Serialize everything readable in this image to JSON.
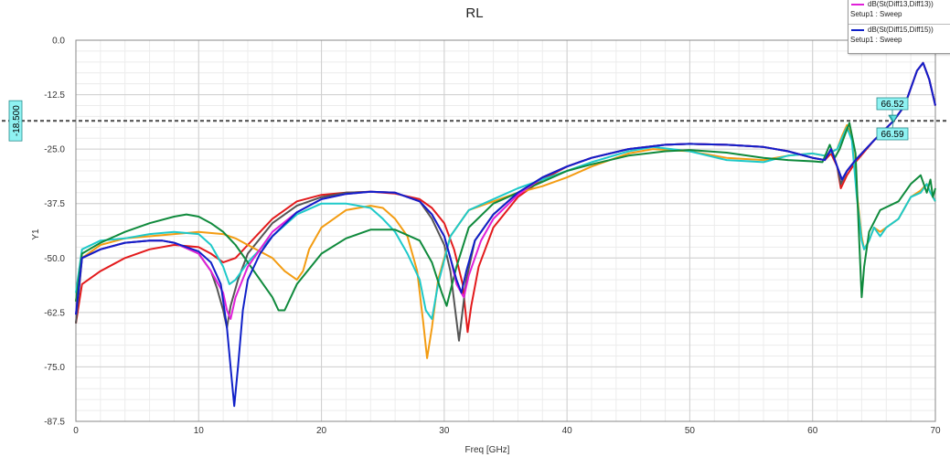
{
  "chart_data": {
    "type": "line",
    "title": "RL",
    "xlabel": "Freq [GHz]",
    "ylabel": "Y1",
    "xlim": [
      0,
      70
    ],
    "ylim": [
      -87.5,
      0
    ],
    "xticks": [
      0,
      10,
      20,
      30,
      40,
      50,
      60,
      70
    ],
    "yticks": [
      0.0,
      -12.5,
      -25.0,
      -37.5,
      -50.0,
      -62.5,
      -75.0,
      -87.5
    ],
    "ytick_labels": [
      "0.0",
      "-12.5",
      "-25.0",
      "-37.5",
      "-50.0",
      "-62.5",
      "-75.0",
      "-87.5"
    ],
    "grid": true,
    "legend_position": "top-right",
    "reference_line": {
      "y": -18.5,
      "label": "-18.500",
      "color": "#555555"
    },
    "markers": [
      {
        "x": 66.5,
        "y": -18.5,
        "label": "66.52"
      },
      {
        "x": 66.6,
        "y": -18.5,
        "label": "66.59"
      }
    ],
    "series": [
      {
        "color": "#e31a1c",
        "x": [
          0,
          0.5,
          2,
          4,
          6,
          8,
          10,
          11,
          12,
          13,
          14,
          16,
          18,
          20,
          22,
          24,
          26,
          28,
          29,
          30,
          30.8,
          31.5,
          31.9,
          32.2,
          32.8,
          34,
          36,
          38,
          40,
          42,
          45,
          48,
          50,
          53,
          56,
          58,
          60,
          61,
          61.5,
          62,
          62.3,
          62.8,
          63.5,
          65,
          66.6,
          67.5,
          68.5,
          69,
          69.5,
          70
        ],
        "y": [
          -65,
          -56,
          -53,
          -50,
          -48,
          -47,
          -47.5,
          -49,
          -51,
          -50,
          -47,
          -41,
          -37,
          -35.5,
          -35,
          -34.8,
          -35.2,
          -36.5,
          -38.5,
          -42,
          -48,
          -56,
          -67,
          -61,
          -52,
          -43,
          -36,
          -32,
          -29,
          -27,
          -25,
          -24,
          -23.8,
          -24,
          -24.5,
          -25.5,
          -27,
          -27.5,
          -26,
          -29,
          -34,
          -31,
          -28,
          -23,
          -18.5,
          -15,
          -7,
          -5.2,
          -9,
          -15
        ]
      },
      {
        "color": "#555555",
        "x": [
          0,
          0.5,
          2,
          4,
          6,
          7,
          8,
          10,
          11,
          11.5,
          12,
          12.3,
          12.6,
          13.2,
          14,
          16,
          18,
          20,
          22,
          24,
          26,
          28,
          29,
          30,
          30.5,
          31.2,
          31.8,
          32.5,
          34,
          36,
          38,
          40,
          42,
          45,
          48,
          50,
          53,
          56,
          58,
          60,
          61,
          61.5,
          62,
          62.3,
          62.8,
          63.5,
          65,
          66.6,
          67.5,
          68.5,
          69,
          69.5,
          70
        ],
        "y": [
          -65,
          -50,
          -48,
          -46.5,
          -46,
          -46,
          -46.5,
          -49,
          -53,
          -57,
          -62,
          -66,
          -61,
          -55,
          -49,
          -42,
          -38,
          -36,
          -35,
          -34.8,
          -35,
          -37,
          -41,
          -47,
          -53,
          -69,
          -55,
          -46,
          -40,
          -35,
          -31.5,
          -29,
          -27,
          -25,
          -24,
          -23.8,
          -24,
          -24.5,
          -25.5,
          -27,
          -27.5,
          -25,
          -29,
          -33,
          -30,
          -27.5,
          -23,
          -18.5,
          -15,
          -7,
          -5.2,
          -9,
          -15
        ]
      },
      {
        "color": "#f39c12",
        "x": [
          0,
          0.5,
          2,
          4,
          6,
          8,
          10,
          12,
          13,
          14,
          16,
          17,
          18,
          18.5,
          19,
          20,
          22,
          24,
          25,
          26,
          27,
          27.8,
          28.3,
          28.6,
          29,
          29.5,
          30.5,
          32,
          34,
          36,
          38,
          40,
          42,
          45,
          47,
          50,
          53,
          56,
          58,
          60,
          61,
          62,
          62.4,
          62.8,
          63.2,
          63.6,
          64,
          64.2,
          64.6,
          65,
          65.5,
          66,
          67,
          68,
          68.8,
          69.3,
          69.6,
          70
        ],
        "y": [
          -60,
          -50,
          -47,
          -45.5,
          -45,
          -44.5,
          -44,
          -44.5,
          -45.5,
          -47,
          -50,
          -53,
          -55,
          -53,
          -48,
          -43,
          -39,
          -38,
          -38.5,
          -41,
          -45,
          -53,
          -65,
          -73,
          -66,
          -55,
          -45,
          -39,
          -37,
          -35,
          -33.5,
          -31.5,
          -29,
          -26,
          -25,
          -25.5,
          -27,
          -27.5,
          -26.5,
          -26,
          -26.5,
          -25,
          -22,
          -19.5,
          -22,
          -35,
          -45,
          -48,
          -46,
          -43,
          -44,
          -43,
          -41,
          -36,
          -34.5,
          -33,
          -35,
          -37
        ]
      },
      {
        "color": "#1ec9c9",
        "x": [
          0,
          0.5,
          2,
          4,
          6,
          8,
          10,
          11,
          12,
          12.5,
          13,
          14,
          16,
          18,
          20,
          22,
          24,
          25,
          26,
          27,
          28,
          28.5,
          29,
          29.5,
          30.5,
          32,
          34,
          36,
          38,
          40,
          42,
          45,
          47,
          50,
          53,
          56,
          58,
          60,
          61,
          62,
          62.4,
          62.8,
          63.2,
          63.6,
          64,
          64.2,
          64.6,
          65,
          65.5,
          66,
          67,
          68,
          68.8,
          69.3,
          69.6,
          70
        ],
        "y": [
          -58,
          -48,
          -46,
          -45.5,
          -44.5,
          -44,
          -44.5,
          -47,
          -52,
          -56,
          -55,
          -51,
          -45,
          -40,
          -37.5,
          -37.5,
          -38.5,
          -41,
          -44,
          -49,
          -55,
          -62,
          -64,
          -56,
          -45,
          -39,
          -36.5,
          -34,
          -32,
          -30,
          -28,
          -25.5,
          -24.5,
          -25.5,
          -27.5,
          -28,
          -26.5,
          -26,
          -26.5,
          -25,
          -22.5,
          -20,
          -23,
          -36,
          -46,
          -48,
          -46,
          -43,
          -45,
          -43,
          -41,
          -36,
          -35,
          -33,
          -35,
          -37
        ]
      },
      {
        "color": "#0f8a3c",
        "x": [
          0,
          0.5,
          2,
          4,
          6,
          8,
          9,
          10,
          11,
          12,
          13,
          14,
          15,
          16,
          16.5,
          17,
          18,
          20,
          22,
          24,
          26,
          28,
          29,
          29.8,
          30.2,
          31,
          32,
          34,
          36,
          38,
          40,
          42,
          45,
          48,
          50,
          53,
          56,
          58,
          60,
          60.8,
          61.4,
          61.8,
          62.2,
          62.6,
          63,
          63.5,
          63.8,
          64,
          64.2,
          64.6,
          65.5,
          67,
          68,
          68.8,
          69.3,
          69.6,
          69.8,
          70
        ],
        "y": [
          -60,
          -49,
          -46.5,
          -44,
          -42,
          -40.5,
          -40,
          -40.5,
          -42,
          -44,
          -47,
          -51,
          -55,
          -59,
          -62,
          -62,
          -56,
          -49,
          -45.5,
          -43.5,
          -43.5,
          -46,
          -51,
          -58,
          -61,
          -52,
          -43,
          -37.5,
          -35,
          -32.5,
          -30,
          -28.5,
          -26.5,
          -25.5,
          -25.2,
          -25.8,
          -27,
          -27.5,
          -27.8,
          -28,
          -24,
          -27,
          -25,
          -22,
          -19,
          -26,
          -46,
          -59,
          -52,
          -44,
          -39,
          -37,
          -33,
          -31,
          -35,
          -32,
          -36,
          -34
        ]
      },
      {
        "color": "#e020d8",
        "x": [
          0,
          0.5,
          2,
          4,
          6,
          7,
          8,
          10,
          11,
          12,
          12.3,
          12.6,
          13,
          14,
          16,
          18,
          20,
          22,
          24,
          26,
          28,
          29,
          30,
          30.5,
          31,
          31.6,
          32,
          33,
          34,
          36,
          38,
          40,
          42,
          45,
          48,
          50,
          53,
          56,
          58,
          60,
          61,
          61.5,
          62,
          62.4,
          62.8,
          63.5,
          65,
          66.6,
          67.5,
          68.5,
          69,
          69.5,
          70
        ],
        "y": [
          -63,
          -50,
          -48,
          -46.5,
          -46,
          -46,
          -46.5,
          -49,
          -53,
          -58,
          -62,
          -64,
          -59,
          -52,
          -44,
          -39.5,
          -36.5,
          -35.3,
          -34.8,
          -35,
          -37,
          -40,
          -45,
          -50,
          -56,
          -59,
          -54,
          -46,
          -41,
          -35.5,
          -31.5,
          -29,
          -27,
          -25,
          -24,
          -23.8,
          -24,
          -24.5,
          -25.5,
          -27,
          -27.5,
          -25,
          -29,
          -32,
          -30,
          -27.5,
          -23,
          -18.5,
          -15,
          -7,
          -5.2,
          -9,
          -15
        ]
      },
      {
        "color": "#1020c8",
        "x": [
          0,
          0.5,
          2,
          4,
          6,
          7,
          8,
          10,
          11,
          11.8,
          12.3,
          12.7,
          12.9,
          13.2,
          13.6,
          14,
          15,
          16,
          18,
          20,
          22,
          24,
          26,
          28,
          29,
          30,
          30.5,
          31,
          31.4,
          31.8,
          32.5,
          34,
          36,
          38,
          40,
          42,
          45,
          48,
          50,
          53,
          56,
          58,
          60,
          61,
          61.5,
          62,
          62.4,
          62.8,
          63.5,
          65,
          66.6,
          67.5,
          68.5,
          69,
          69.5,
          70
        ],
        "y": [
          -63,
          -50,
          -48,
          -46.5,
          -46,
          -46,
          -46.5,
          -48.5,
          -51,
          -56,
          -66,
          -78,
          -84,
          -75,
          -62,
          -55,
          -49,
          -45,
          -39.5,
          -36.5,
          -35.3,
          -34.8,
          -35,
          -37,
          -40,
          -45,
          -50,
          -55,
          -58,
          -53,
          -46,
          -40,
          -35,
          -31.5,
          -29,
          -27,
          -25,
          -24,
          -23.8,
          -24,
          -24.5,
          -25.5,
          -27,
          -27.5,
          -25,
          -29,
          -32,
          -30,
          -27.5,
          -23,
          -18.5,
          -15,
          -7,
          -5.2,
          -9,
          -15
        ]
      }
    ]
  },
  "legend": {
    "entries": [
      {
        "name": "dB(St(Diff13,Diff13))",
        "sub": "Setup1 : Sweep",
        "color": "#e020d8"
      },
      {
        "name": "dB(St(Diff15,Diff15))",
        "sub": "Setup1 : Sweep",
        "color": "#1020c8"
      }
    ]
  }
}
